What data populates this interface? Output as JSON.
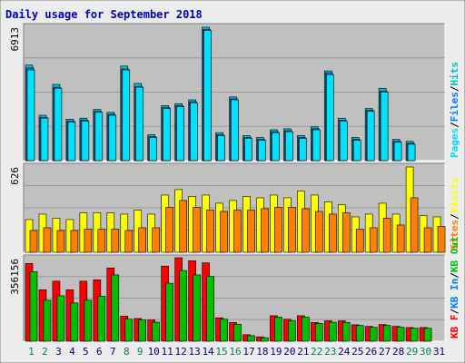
{
  "colors": {
    "frame_bg": "#ececec",
    "panel_bg": "#c0c0c0",
    "grid": "#9a9a9a",
    "title": "#0000cc",
    "hits": "#00c0c0",
    "files": "#0080ff",
    "pages": "#00e0ff",
    "visits": "#ffff00",
    "sites": "#ff8000",
    "kbf": "#ff0000",
    "kbin": "#00c000",
    "kbout": "#00c000",
    "weekend_day": "#00805c",
    "weekday": "#000080"
  },
  "chart_data": {
    "type": "bar",
    "title": "Daily usage for September 2018",
    "days": [
      "1",
      "2",
      "3",
      "4",
      "5",
      "6",
      "7",
      "8",
      "9",
      "10",
      "11",
      "12",
      "13",
      "14",
      "15",
      "16",
      "17",
      "18",
      "19",
      "20",
      "21",
      "22",
      "23",
      "24",
      "25",
      "26",
      "27",
      "28",
      "29",
      "30",
      "31"
    ],
    "weekend_days": [
      "1",
      "2",
      "8",
      "9",
      "15",
      "16",
      "22",
      "23",
      "29",
      "30"
    ],
    "panels": [
      {
        "id": "hits",
        "max_label": "6913",
        "ymax": 6913,
        "legend": [
          {
            "text": "Pages",
            "color_key": "pages"
          },
          {
            "text": "/",
            "color_key": "sep"
          },
          {
            "text": "Files",
            "color_key": "files"
          },
          {
            "text": "/",
            "color_key": "sep"
          },
          {
            "text": "Hits",
            "color_key": "hits"
          }
        ],
        "series": [
          {
            "name": "Hits",
            "values": [
              4950,
              2350,
              3950,
              2150,
              2200,
              2650,
              2500,
              4900,
              4000,
              1350,
              2850,
              2950,
              3150,
              6913,
              1450,
              3300,
              1300,
              1200,
              1600,
              1650,
              1300,
              1750,
              4650,
              2200,
              1200,
              2700,
              3750,
              1100,
              1000,
              0,
              0
            ]
          },
          {
            "name": "Files",
            "values": [
              4800,
              2250,
              3800,
              2050,
              2100,
              2550,
              2400,
              4750,
              3850,
              1250,
              2750,
              2850,
              3050,
              6800,
              1350,
              3200,
              1200,
              1100,
              1500,
              1550,
              1200,
              1650,
              4550,
              2100,
              1100,
              2600,
              3600,
              1000,
              900,
              0,
              0
            ]
          },
          {
            "name": "Pages",
            "values": [
              4700,
              2200,
              3750,
              2000,
              2050,
              2500,
              2350,
              4700,
              3800,
              1200,
              2700,
              2800,
              3000,
              6750,
              1300,
              3150,
              1150,
              1050,
              1450,
              1500,
              1150,
              1600,
              4450,
              2050,
              1050,
              2550,
              3550,
              950,
              850,
              0,
              0
            ]
          }
        ]
      },
      {
        "id": "visits",
        "max_label": "626",
        "ymax": 626,
        "legend": [
          {
            "text": "Sites",
            "color_key": "sites"
          },
          {
            "text": "/",
            "color_key": "sep"
          },
          {
            "text": "Visits",
            "color_key": "visits"
          }
        ],
        "series": [
          {
            "name": "Visits",
            "values": [
              240,
              280,
              250,
              240,
              290,
              290,
              290,
              280,
              310,
              280,
              420,
              460,
              410,
              420,
              360,
              380,
              410,
              400,
              420,
              400,
              450,
              420,
              370,
              350,
              260,
              280,
              360,
              280,
              626,
              270,
              260
            ]
          },
          {
            "name": "Sites",
            "values": [
              160,
              180,
              160,
              160,
              170,
              170,
              170,
              160,
              180,
              180,
              330,
              380,
              330,
              310,
              300,
              310,
              310,
              320,
              330,
              330,
              320,
              300,
              280,
              290,
              170,
              180,
              250,
              200,
              400,
              180,
              190
            ]
          }
        ]
      },
      {
        "id": "kbytes",
        "max_label": "356156",
        "ymax": 356156,
        "legend": [
          {
            "text": "KB F",
            "color_key": "kbf"
          },
          {
            "text": "/",
            "color_key": "sep"
          },
          {
            "text": "KB In",
            "color_key": "files"
          },
          {
            "text": "/",
            "color_key": "sep"
          },
          {
            "text": "KB Out",
            "color_key": "kbout"
          }
        ],
        "series": [
          {
            "name": "KB F",
            "values": [
              335000,
              222000,
              259000,
              222000,
              259000,
              265000,
              316000,
              108000,
              98000,
              92000,
              324000,
              360000,
              347000,
              338000,
              101000,
              81000,
              28000,
              19000,
              110000,
              95000,
              110000,
              81000,
              88000,
              88000,
              71000,
              64000,
              72000,
              64000,
              59000,
              59000,
              0
            ]
          },
          {
            "name": "KB In",
            "values": [
              300000,
              177000,
              196000,
              165000,
              177000,
              194000,
              286000,
              95000,
              92000,
              82000,
              250000,
              305000,
              286000,
              279000,
              95000,
              73000,
              24000,
              15000,
              104000,
              88000,
              104000,
              77000,
              82000,
              81000,
              68000,
              60000,
              68000,
              60000,
              56000,
              56000,
              0
            ]
          }
        ]
      }
    ]
  }
}
